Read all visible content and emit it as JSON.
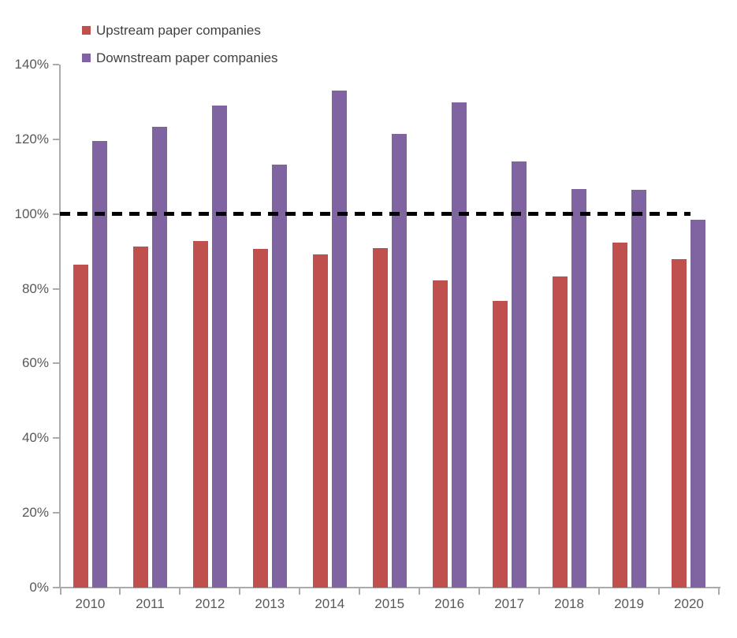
{
  "chart_data": {
    "type": "bar",
    "title": "",
    "xlabel": "",
    "ylabel": "",
    "categories": [
      "2010",
      "2011",
      "2012",
      "2013",
      "2014",
      "2015",
      "2016",
      "2017",
      "2018",
      "2019",
      "2020"
    ],
    "series": [
      {
        "name": "Upstream paper companies",
        "color": "#C0504D",
        "values": [
          86.5,
          91.3,
          92.7,
          90.7,
          89.2,
          90.8,
          82.3,
          76.7,
          83.2,
          92.3,
          87.9
        ]
      },
      {
        "name": "Downstream paper companies",
        "color": "#8064A2",
        "values": [
          119.6,
          123.3,
          129.0,
          113.2,
          133.0,
          121.5,
          130.0,
          114.2,
          106.7,
          106.6,
          98.5
        ]
      }
    ],
    "ylim": [
      0,
      140
    ],
    "ytick_step": 20,
    "ytick_labels": [
      "0%",
      "20%",
      "40%",
      "60%",
      "80%",
      "100%",
      "120%",
      "140%"
    ],
    "grid": false,
    "legend_position": "top-left",
    "reference_line": {
      "value": 100,
      "style": "dashed",
      "color": "#000000"
    }
  },
  "colors": {
    "axis": "#ABABAB",
    "tick_label": "#595959",
    "legend_text": "#404040",
    "background": "#FFFFFF"
  }
}
